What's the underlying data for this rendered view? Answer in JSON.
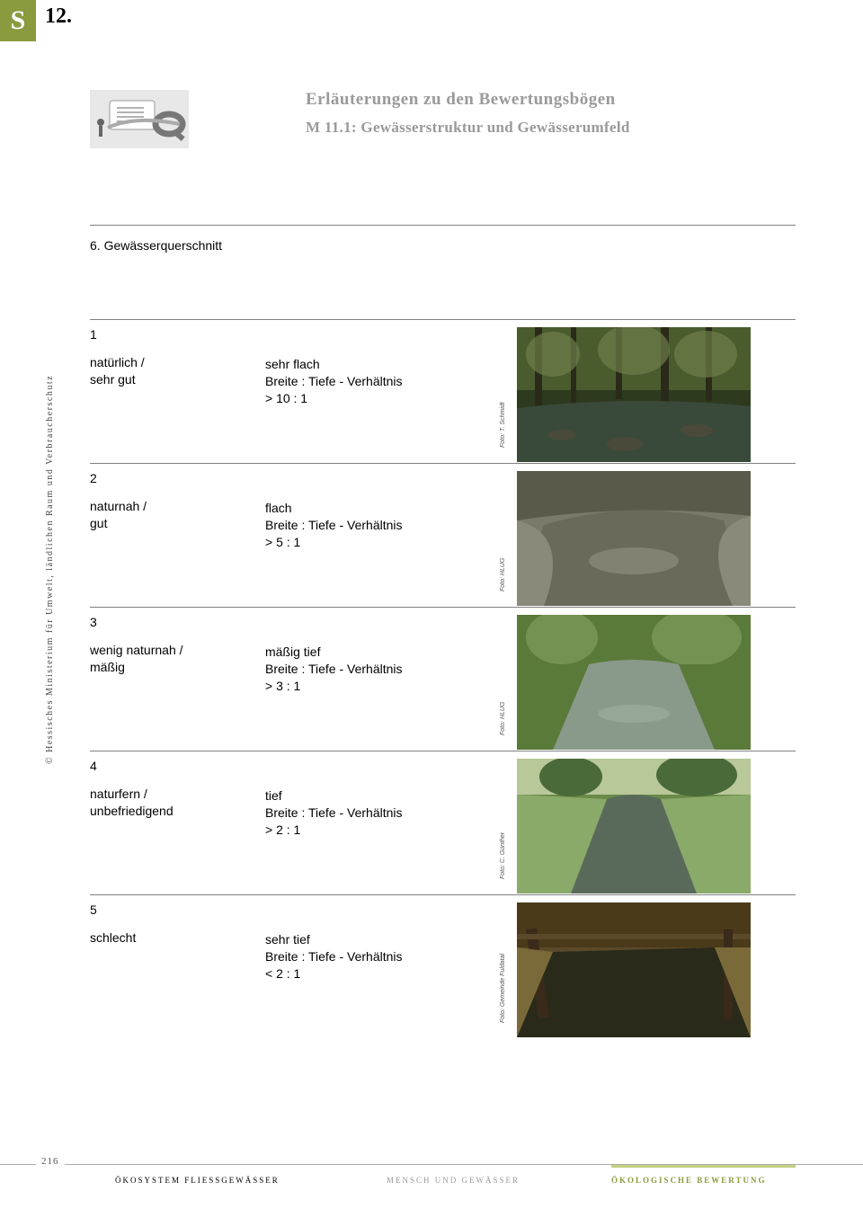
{
  "badge": "S",
  "page_number_top": "12.",
  "title": "Erläuterungen zu den Bewertungsbögen",
  "subtitle": "M 11.1: Gewässerstruktur und Gewässerumfeld",
  "section_heading": "6. Gewässerquerschnitt",
  "side_credit": "© Hessisches Ministerium für Umwelt, ländlichen Raum und Verbraucherschutz",
  "rows": [
    {
      "index": "1",
      "label_line1": "natürlich /",
      "label_line2": "sehr gut",
      "desc_line1": "sehr flach",
      "desc_line2": "Breite : Tiefe - Verhältnis",
      "desc_line3": "> 10 : 1",
      "photo_credit": "Foto: T. Schmidt",
      "photo": {
        "bg": "#2d3a1e",
        "fg1": "#4a5c2e",
        "fg2": "#6e7d4a",
        "water": "#3a4a3a",
        "type": "forest-stream"
      }
    },
    {
      "index": "2",
      "label_line1": "naturnah /",
      "label_line2": "gut",
      "desc_line1": "flach",
      "desc_line2": "Breite : Tiefe - Verhältnis",
      "desc_line3": "> 5 : 1",
      "photo_credit": "Foto: HLUG",
      "photo": {
        "bg": "#7a7a6a",
        "fg1": "#5a5a4a",
        "fg2": "#8a8a7a",
        "water": "#6a6a5a",
        "type": "grey-stream"
      }
    },
    {
      "index": "3",
      "label_line1": "wenig naturnah /",
      "label_line2": "mäßig",
      "desc_line1": "mäßig tief",
      "desc_line2": "Breite : Tiefe - Verhältnis",
      "desc_line3": "> 3 : 1",
      "photo_credit": "Foto: HLUG",
      "photo": {
        "bg": "#3a4a2a",
        "fg1": "#5a7a3a",
        "fg2": "#7a9a5a",
        "water": "#8a9a8a",
        "type": "green-stream"
      }
    },
    {
      "index": "4",
      "label_line1": "naturfern /",
      "label_line2": "unbefriedigend",
      "desc_line1": "tief",
      "desc_line2": "Breite : Tiefe - Verhältnis",
      "desc_line3": "> 2 : 1",
      "photo_credit": "Foto: C. Günther",
      "photo": {
        "bg": "#6a8a4a",
        "fg1": "#4a6a3a",
        "fg2": "#8aaa6a",
        "water": "#5a6a5a",
        "type": "meadow-stream"
      }
    },
    {
      "index": "5",
      "label_line1": "schlecht",
      "label_line2": "",
      "desc_line1": "sehr tief",
      "desc_line2": "Breite : Tiefe - Verhältnis",
      "desc_line3": "< 2 : 1",
      "photo_credit": "Foto: Gemeinde Fuldatal",
      "photo": {
        "bg": "#5a4a2a",
        "fg1": "#7a6a3a",
        "fg2": "#4a3a1a",
        "water": "#2a2a1a",
        "type": "bridge-stream"
      }
    }
  ],
  "footer": {
    "page": "216",
    "left": "ÖKOSYSTEM FLIESSGEWÄSSER",
    "mid": "MENSCH UND GEWÄSSER",
    "right": "ÖKOLOGISCHE BEWERTUNG"
  }
}
